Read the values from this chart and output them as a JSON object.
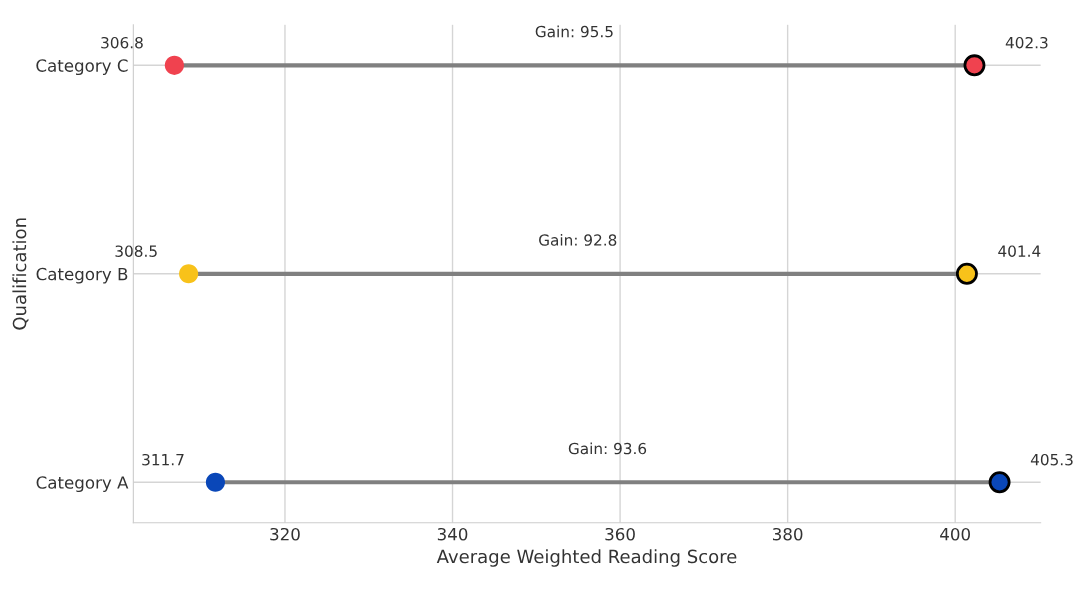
{
  "chart_data": {
    "type": "scatter",
    "orientation": "horizontal",
    "xlabel": "Average Weighted Reading Score",
    "ylabel": "Qualification",
    "categories": [
      "Category C",
      "Category B",
      "Category A"
    ],
    "series": [
      {
        "values": [
          306.8,
          308.5,
          311.7
        ],
        "colors": [
          "#f0424f",
          "#f8c21a",
          "#0a47b8"
        ]
      },
      {
        "values": [
          402.3,
          401.4,
          405.3
        ],
        "colors": [
          "#f0424f",
          "#f8c21a",
          "#0a47b8"
        ]
      }
    ],
    "data_labels": true,
    "annotations": [
      "Gain: 95.5",
      "Gain: 92.8",
      "Gain: 93.6"
    ],
    "xlim": [
      301.9,
      410.2
    ],
    "xticks": [
      320,
      340,
      360,
      380,
      400
    ],
    "grid": true
  }
}
